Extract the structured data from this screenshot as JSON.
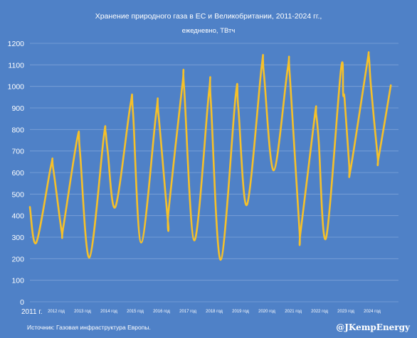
{
  "chart_data": {
    "type": "line",
    "title": "Хранение природного газа в ЕС и Великобритании, 2011-2024 гг.,",
    "subtitle": "ежедневно, ТВтч",
    "xlabel": "",
    "ylabel": "",
    "ylim": [
      0,
      1200
    ],
    "yticks": [
      0,
      100,
      200,
      300,
      400,
      500,
      600,
      700,
      800,
      900,
      1000,
      1100,
      1200
    ],
    "grid": true,
    "legend": "none",
    "x_tick_labels": [
      "2011 г.",
      "2012 год",
      "2013 год",
      "2014 год",
      "2015 год",
      "2016 год",
      "2017 год",
      "2018 год",
      "2019 год",
      "2020 год",
      "2021 год",
      "2022 год",
      "2023 год",
      "2024 год"
    ],
    "series": [
      {
        "color": "#f5c02a",
        "points": [
          [
            "2011-01-01",
            440
          ],
          [
            "2011-03-31",
            275
          ],
          [
            "2011-10-20",
            630
          ],
          [
            "2011-11-20",
            620
          ],
          [
            "2012-03-15",
            330
          ],
          [
            "2012-04-10",
            350
          ],
          [
            "2012-10-20",
            760
          ],
          [
            "2012-11-25",
            700
          ],
          [
            "2013-04-05",
            205
          ],
          [
            "2013-10-20",
            760
          ],
          [
            "2013-11-15",
            790
          ],
          [
            "2013-12-15",
            700
          ],
          [
            "2014-03-31",
            440
          ],
          [
            "2014-10-25",
            910
          ],
          [
            "2014-12-01",
            880
          ],
          [
            "2015-03-25",
            275
          ],
          [
            "2015-10-20",
            880
          ],
          [
            "2015-11-20",
            870
          ],
          [
            "2016-03-31",
            370
          ],
          [
            "2016-04-10",
            430
          ],
          [
            "2016-10-15",
            1005
          ],
          [
            "2016-11-10",
            990
          ],
          [
            "2017-03-31",
            285
          ],
          [
            "2017-10-20",
            975
          ],
          [
            "2017-11-15",
            930
          ],
          [
            "2018-03-31",
            195
          ],
          [
            "2018-10-25",
            955
          ],
          [
            "2018-12-01",
            900
          ],
          [
            "2019-03-31",
            450
          ],
          [
            "2019-10-20",
            1090
          ],
          [
            "2019-11-20",
            1060
          ],
          [
            "2020-04-05",
            610
          ],
          [
            "2020-10-15",
            1080
          ],
          [
            "2020-11-15",
            1050
          ],
          [
            "2021-03-25",
            350
          ],
          [
            "2021-04-15",
            330
          ],
          [
            "2021-10-25",
            860
          ],
          [
            "2021-11-15",
            870
          ],
          [
            "2021-12-20",
            750
          ],
          [
            "2022-03-31",
            295
          ],
          [
            "2022-10-25",
            1080
          ],
          [
            "2022-11-25",
            960
          ],
          [
            "2022-12-15",
            940
          ],
          [
            "2023-02-15",
            640
          ],
          [
            "2023-03-10",
            620
          ],
          [
            "2023-10-20",
            1100
          ],
          [
            "2023-11-15",
            1140
          ],
          [
            "2023-12-15",
            1000
          ],
          [
            "2024-03-15",
            680
          ],
          [
            "2024-03-31",
            670
          ],
          [
            "2024-09-15",
            1005
          ]
        ]
      }
    ]
  },
  "footer": {
    "source": "Источник: Газовая инфраструктура Европы.",
    "brand": "@JKempEnergy"
  }
}
